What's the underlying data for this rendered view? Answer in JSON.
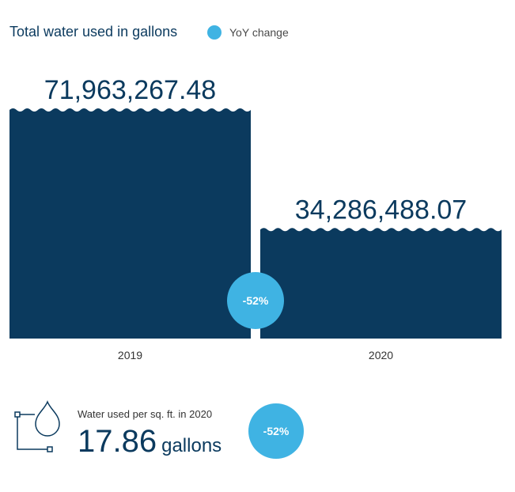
{
  "colors": {
    "bar": "#0b3a5e",
    "accent": "#3fb3e3"
  },
  "legend": {
    "label": "YoY change"
  },
  "chart_data": {
    "type": "bar",
    "title": "Total water used in gallons",
    "categories": [
      "2019",
      "2020"
    ],
    "values": [
      71963267.48,
      34286488.07
    ],
    "value_labels": [
      "71,963,267.48",
      "34,286,488.07"
    ],
    "annotation": "-52%",
    "legend_position": "top",
    "grid": false
  },
  "metric": {
    "caption": "Water used per sq. ft. in 2020",
    "value": "17.86",
    "unit": "gallons",
    "change": "-52%",
    "icon": "water-drop-icon"
  }
}
